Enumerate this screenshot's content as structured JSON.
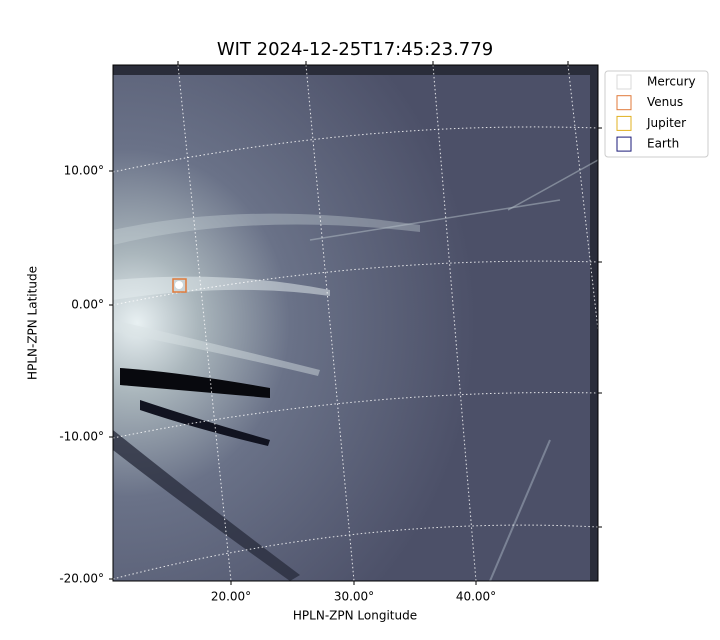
{
  "title": "WIT 2024-12-25T17:45:23.779",
  "x_axis": {
    "label": "HPLN-ZPN Longitude",
    "ticks": [
      "20.00°",
      "30.00°",
      "40.00°"
    ]
  },
  "y_axis": {
    "label": "HPLN-ZPN Latitude",
    "ticks": [
      "10.00°",
      "0.00°",
      "-10.00°",
      "-20.00°"
    ]
  },
  "legend": [
    {
      "name": "Mercury",
      "color": "#d9d9d9"
    },
    {
      "name": "Venus",
      "color": "#e07a3a"
    },
    {
      "name": "Jupiter",
      "color": "#e0b020"
    },
    {
      "name": "Earth",
      "color": "#1a1a78"
    }
  ]
}
